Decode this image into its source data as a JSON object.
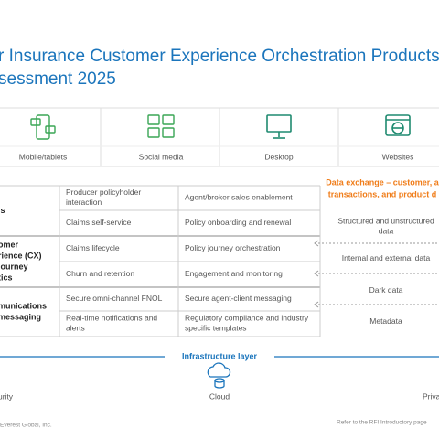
{
  "header": {
    "title_lines": [
      "r Insurance Customer Experience Orchestration Products (CXO",
      "sessment 2025"
    ]
  },
  "channels": [
    "Mobile/tablets",
    "Social media",
    "Desktop",
    "Websites"
  ],
  "table": {
    "groups": [
      {
        "label_lines": [
          "ls"
        ],
        "rows": [
          [
            "Producer policyholder interaction",
            "Agent/broker sales enablement"
          ],
          [
            "Claims self-service",
            "Policy onboarding and renewal"
          ]
        ]
      },
      {
        "label_lines": [
          "omer",
          "rience (CX)",
          "journey",
          "tics"
        ],
        "rows": [
          [
            "Claims lifecycle",
            "Policy journey orchestration"
          ],
          [
            "Churn and retention",
            "Engagement and monitoring"
          ]
        ]
      },
      {
        "label_lines": [
          "munications",
          "messaging"
        ],
        "rows": [
          [
            "Secure omni-channel FNOL",
            "Secure agent-client messaging"
          ],
          [
            "Real-time notifications and alerts",
            "Regulatory compliance and industry specific templates"
          ]
        ]
      }
    ]
  },
  "data_exchange": {
    "heading_lines": [
      "Data exchange – customer, a",
      "transactions, and product d"
    ],
    "items": [
      "Structured and unstructured data",
      "Internal and external data",
      "Dark data",
      "Metadata"
    ]
  },
  "infrastructure": {
    "title": "Infrastructure layer",
    "items": [
      "urity",
      "Cloud",
      "Priva"
    ]
  },
  "footer": {
    "left": "Everest Global, Inc.",
    "right": "Refer to the RFI Introductory page"
  }
}
